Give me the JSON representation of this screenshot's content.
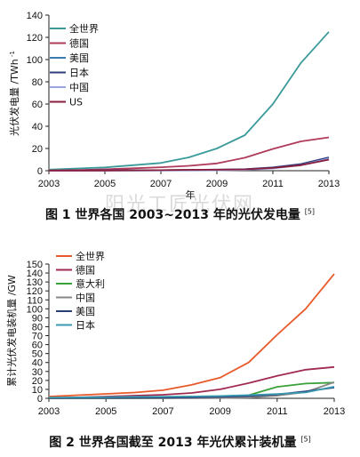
{
  "watermark": "阳光工匠光伏网",
  "chart_data": [
    {
      "type": "line",
      "caption": "图 1 世界各国 2003~2013 年的光伏发电量",
      "caption_ref": "[5]",
      "ylabel": "光伏发电量 /TWh",
      "xlabel": "年",
      "xlim": [
        2003,
        2013
      ],
      "ylim": [
        0,
        140
      ],
      "xticks": [
        2003,
        2005,
        2007,
        2009,
        2011,
        2013
      ],
      "yticks": [
        0,
        20,
        40,
        60,
        80,
        100,
        120,
        140
      ],
      "legend_position": "top-left",
      "x": [
        2003,
        2004,
        2005,
        2006,
        2007,
        2008,
        2009,
        2010,
        2011,
        2012,
        2013
      ],
      "series": [
        {
          "name": "全世界",
          "color": "#3a9a9a",
          "values": [
            1,
            2,
            3,
            5,
            7,
            12,
            20,
            32,
            60,
            97,
            125
          ]
        },
        {
          "name": "德国",
          "color": "#b03a5a",
          "values": [
            0.3,
            0.6,
            1.3,
            2.2,
            3.1,
            4.4,
            6.6,
            11.7,
            19.6,
            26.4,
            30
          ]
        },
        {
          "name": "美国",
          "color": "#3b7db0",
          "values": [
            0.1,
            0.1,
            0.2,
            0.3,
            0.5,
            0.8,
            1,
            1.2,
            2.5,
            5,
            10
          ]
        },
        {
          "name": "日本",
          "color": "#2c3e7a",
          "values": [
            0.1,
            0.2,
            0.3,
            0.4,
            0.5,
            0.6,
            0.8,
            1.4,
            3,
            6,
            12
          ]
        },
        {
          "name": "中国",
          "color": "#9aa5dd",
          "values": [
            0,
            0,
            0,
            0,
            0.1,
            0.2,
            0.3,
            0.7,
            2,
            5,
            11
          ]
        },
        {
          "name": "US",
          "color": "#8a1e3c",
          "values": [
            0.1,
            0.1,
            0.2,
            0.3,
            0.5,
            0.8,
            1,
            1.2,
            2.5,
            5,
            10
          ]
        }
      ]
    },
    {
      "type": "line",
      "caption": "图 2 世界各国截至 2013 年光伏累计装机量",
      "caption_ref": "[5]",
      "ylabel": "累计光伏发电装机量 /GW",
      "xlabel": "",
      "xlim": [
        2003,
        2013
      ],
      "ylim": [
        0,
        150
      ],
      "xticks": [
        2003,
        2005,
        2007,
        2009,
        2011,
        2013
      ],
      "yticks": [
        0,
        10,
        20,
        30,
        40,
        50,
        60,
        70,
        80,
        90,
        100,
        110,
        120,
        130,
        140,
        150
      ],
      "legend_position": "top-left",
      "x": [
        2003,
        2004,
        2005,
        2006,
        2007,
        2008,
        2009,
        2010,
        2011,
        2012,
        2013
      ],
      "series": [
        {
          "name": "全世界",
          "color": "#e85a2a",
          "values": [
            2,
            3.5,
            5,
            6.5,
            9,
            15,
            23,
            40,
            71,
            100,
            139
          ]
        },
        {
          "name": "德国",
          "color": "#a02a50",
          "values": [
            0.4,
            1,
            2,
            3,
            4,
            6,
            10,
            17,
            25,
            32,
            35
          ]
        },
        {
          "name": "意大利",
          "color": "#3aa03a",
          "values": [
            0,
            0,
            0,
            0,
            0.1,
            0.5,
            1,
            3.5,
            12.8,
            16.5,
            17.6
          ]
        },
        {
          "name": "中国",
          "color": "#888888",
          "values": [
            0,
            0.1,
            0.1,
            0.1,
            0.1,
            0.1,
            0.3,
            0.8,
            3,
            7,
            18
          ]
        },
        {
          "name": "美国",
          "color": "#2c3e7a",
          "values": [
            0.3,
            0.4,
            0.5,
            0.6,
            0.8,
            1,
            1.6,
            2.5,
            4.4,
            7.7,
            12
          ]
        },
        {
          "name": "日本",
          "color": "#3a9ab0",
          "values": [
            0.9,
            1.1,
            1.4,
            1.7,
            1.9,
            2.1,
            2.6,
            3.6,
            4.9,
            6.6,
            13
          ]
        }
      ]
    }
  ]
}
